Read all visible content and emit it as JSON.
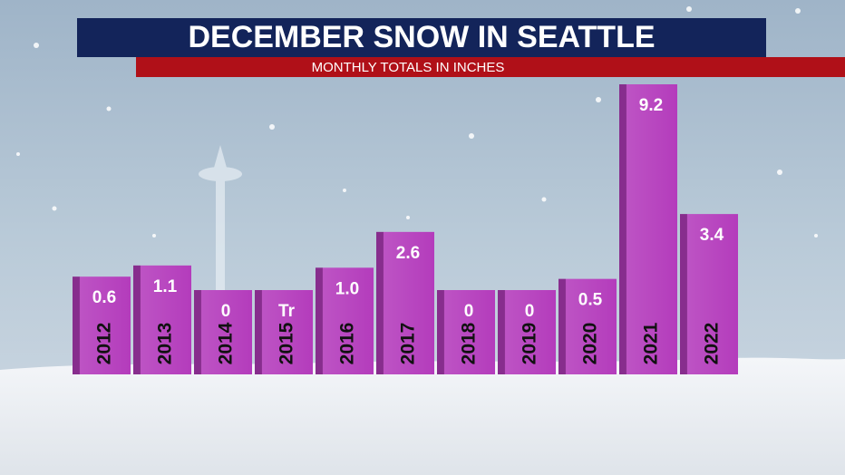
{
  "chart_data": {
    "type": "bar",
    "title": "DECEMBER SNOW IN SEATTLE",
    "subtitle": "MONTHLY TOTALS IN INCHES",
    "categories": [
      "2012",
      "2013",
      "2014",
      "2015",
      "2016",
      "2017",
      "2018",
      "2019",
      "2020",
      "2021",
      "2022"
    ],
    "values": [
      0.6,
      1.1,
      0,
      0,
      1.0,
      2.6,
      0,
      0,
      0.5,
      9.2,
      3.4
    ],
    "value_labels": [
      "0.6",
      "1.1",
      "0",
      "Tr",
      "1.0",
      "2.6",
      "0",
      "0",
      "0.5",
      "9.2",
      "3.4"
    ],
    "color": "#b43cbc"
  }
}
